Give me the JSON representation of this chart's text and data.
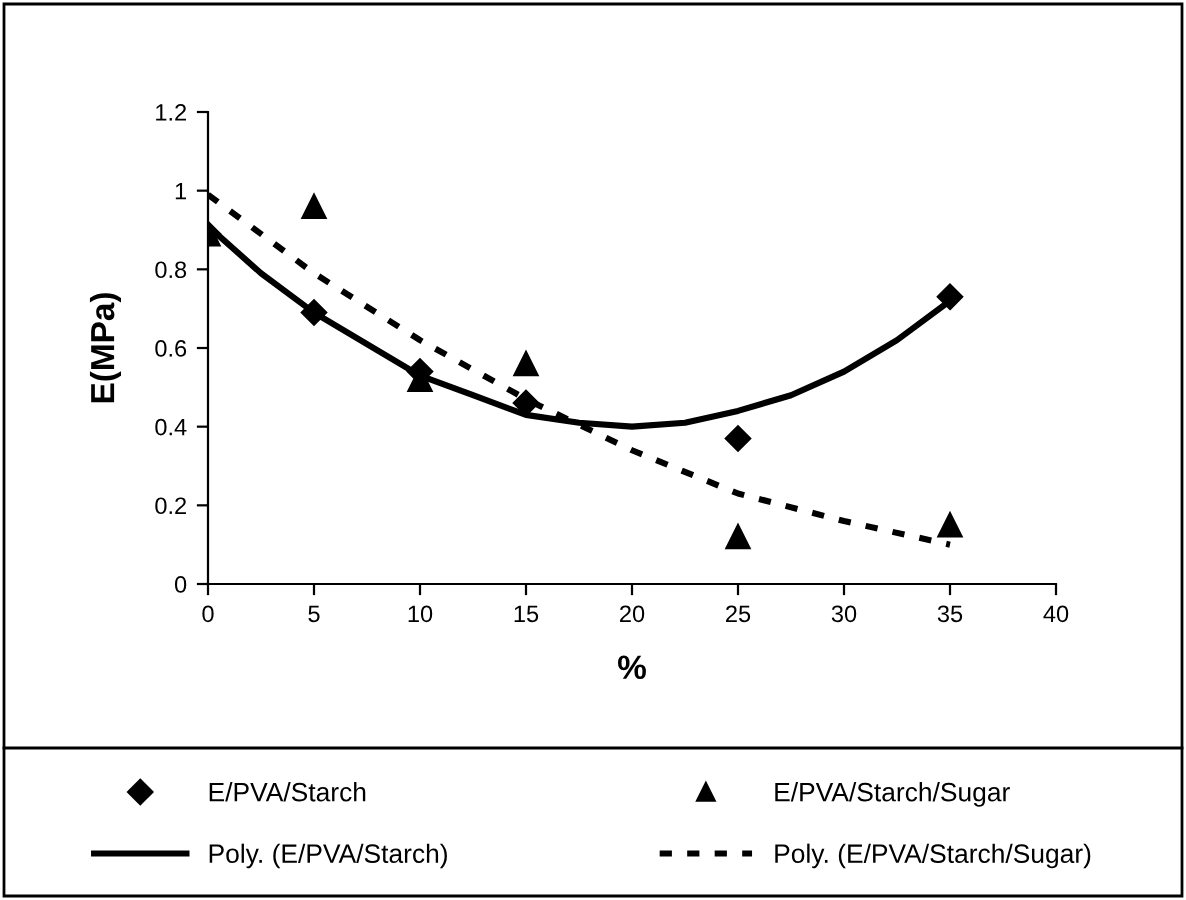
{
  "chart_data": {
    "type": "scatter",
    "xlabel": "%",
    "ylabel": "E(MPa)",
    "xlim": [
      0,
      40
    ],
    "ylim": [
      0,
      1.2
    ],
    "xticks": [
      0,
      5,
      10,
      15,
      20,
      25,
      30,
      35,
      40
    ],
    "yticks": [
      0,
      0.2,
      0.4,
      0.6,
      0.8,
      1,
      1.2
    ],
    "grid": false,
    "legend": "bottom",
    "series": [
      {
        "name": "E/PVA/Starch",
        "marker": "diamond",
        "color": "#000000",
        "x": [
          0,
          5,
          10,
          15,
          25,
          35
        ],
        "values": [
          0.89,
          0.69,
          0.54,
          0.46,
          0.37,
          0.73
        ]
      },
      {
        "name": "E/PVA/Starch/Sugar",
        "marker": "triangle",
        "color": "#000000",
        "x": [
          0,
          5,
          10,
          15,
          25,
          35
        ],
        "values": [
          0.89,
          0.96,
          0.52,
          0.56,
          0.12,
          0.15
        ]
      },
      {
        "name": "Poly. (E/PVA/Starch)",
        "type": "line",
        "line_style": "solid",
        "color": "#000000",
        "x": [
          0,
          2.5,
          5,
          7.5,
          10,
          12.5,
          15,
          17.5,
          20,
          22.5,
          25,
          27.5,
          30,
          32.5,
          35
        ],
        "values": [
          0.91,
          0.79,
          0.69,
          0.61,
          0.53,
          0.48,
          0.43,
          0.41,
          0.4,
          0.41,
          0.44,
          0.48,
          0.54,
          0.62,
          0.72
        ]
      },
      {
        "name": "Poly. (E/PVA/Starch/Sugar)",
        "type": "line",
        "line_style": "dotted",
        "color": "#000000",
        "x": [
          0,
          5,
          10,
          15,
          20,
          25,
          30,
          35
        ],
        "values": [
          0.99,
          0.79,
          0.62,
          0.47,
          0.34,
          0.23,
          0.16,
          0.1
        ]
      }
    ]
  }
}
